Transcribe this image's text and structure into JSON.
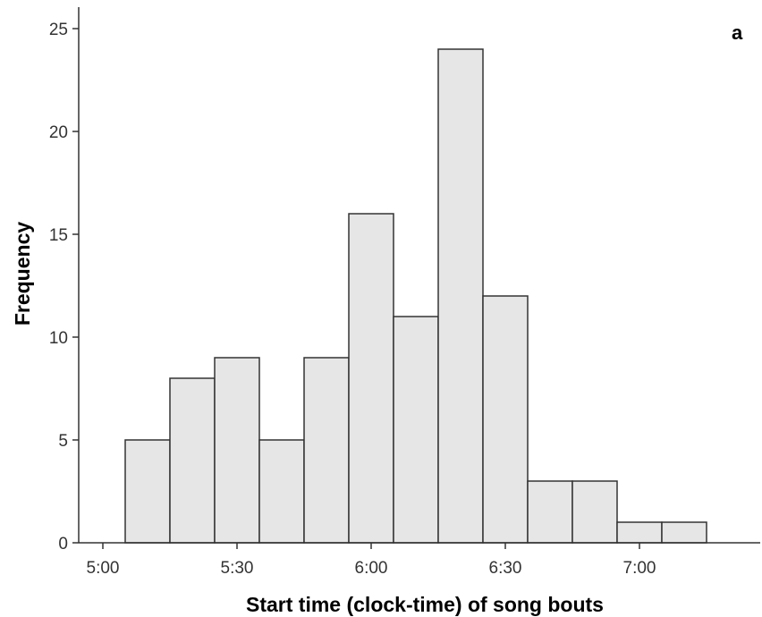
{
  "chart_data": {
    "type": "bar",
    "panel_label": "a",
    "xlabel": "Start time (clock-time) of song bouts",
    "ylabel": "Frequency",
    "xlim": [
      "4:55",
      "7:05"
    ],
    "ylim": [
      0,
      26
    ],
    "x_ticks": [
      "5:00",
      "5:30",
      "6:00",
      "6:30",
      "7:00"
    ],
    "y_ticks": [
      "0",
      "5",
      "10",
      "15",
      "20",
      "25"
    ],
    "bin_width_minutes": 10,
    "bins": [
      {
        "start": "5:05",
        "end": "5:15",
        "count": 5
      },
      {
        "start": "5:15",
        "end": "5:25",
        "count": 8
      },
      {
        "start": "5:25",
        "end": "5:35",
        "count": 9
      },
      {
        "start": "5:35",
        "end": "5:45",
        "count": 5
      },
      {
        "start": "5:45",
        "end": "5:55",
        "count": 9
      },
      {
        "start": "5:55",
        "end": "6:05",
        "count": 16
      },
      {
        "start": "6:05",
        "end": "6:15",
        "count": 11
      },
      {
        "start": "6:15",
        "end": "6:25",
        "count": 24
      },
      {
        "start": "6:25",
        "end": "6:35",
        "count": 12
      },
      {
        "start": "6:35",
        "end": "6:45",
        "count": 3
      },
      {
        "start": "6:45",
        "end": "6:55",
        "count": 3
      },
      {
        "start": "6:55",
        "end": "7:05",
        "count": 1
      },
      {
        "start": "7:05",
        "end": "7:15",
        "count": 1
      }
    ],
    "colors": {
      "bar_fill": "#e6e6e6",
      "bar_stroke": "#333333",
      "axis": "#333333"
    },
    "grid": false,
    "legend": "none"
  }
}
